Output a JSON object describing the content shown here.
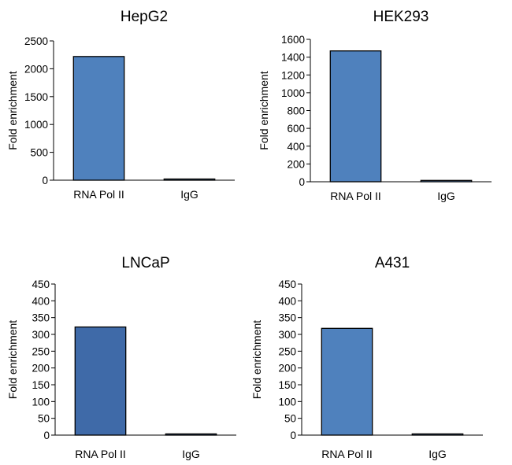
{
  "chart_data": [
    {
      "type": "bar",
      "title": "HepG2",
      "ylabel": "Fold enrichment",
      "categories": [
        "RNA Pol II",
        "IgG"
      ],
      "values": [
        2220,
        15
      ],
      "ylim": [
        0,
        2500
      ],
      "yticks": [
        "0",
        "500",
        "1000",
        "1500",
        "2000",
        "2500"
      ],
      "bar_color": "#4f81bd",
      "grid": false,
      "legend": "none"
    },
    {
      "type": "bar",
      "title": "HEK293",
      "ylabel": "Fold enrichment",
      "categories": [
        "RNA Pol II",
        "IgG"
      ],
      "values": [
        1470,
        15
      ],
      "ylim": [
        0,
        1600
      ],
      "yticks": [
        "0",
        "200",
        "400",
        "600",
        "800",
        "1000",
        "1200",
        "1400",
        "1600"
      ],
      "bar_color": "#4f81bd",
      "grid": false,
      "legend": "none"
    },
    {
      "type": "bar",
      "title": "LNCaP",
      "ylabel": "Fold enrichment",
      "categories": [
        "RNA Pol II",
        "IgG"
      ],
      "values": [
        322,
        2
      ],
      "ylim": [
        0,
        450
      ],
      "yticks": [
        "0",
        "50",
        "100",
        "150",
        "200",
        "250",
        "300",
        "350",
        "400",
        "450"
      ],
      "bar_color": "#3f6aa8",
      "grid": false,
      "legend": "none"
    },
    {
      "type": "bar",
      "title": "A431",
      "ylabel": "Fold enrichment",
      "categories": [
        "RNA Pol II",
        "IgG"
      ],
      "values": [
        318,
        2
      ],
      "ylim": [
        0,
        450
      ],
      "yticks": [
        "0",
        "50",
        "100",
        "150",
        "200",
        "250",
        "300",
        "350",
        "400",
        "450"
      ],
      "bar_color": "#4f81bd",
      "grid": false,
      "legend": "none"
    }
  ]
}
